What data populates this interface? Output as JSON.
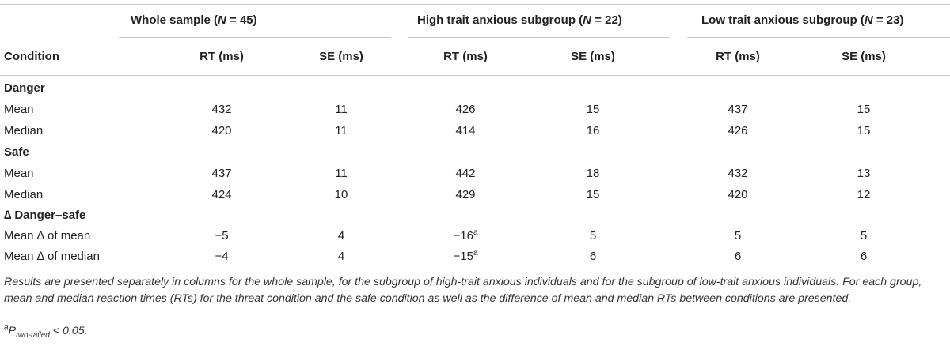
{
  "groups": [
    {
      "label_prefix": "Whole sample (",
      "label_var": "N",
      "label_suffix": " = 45)"
    },
    {
      "label_prefix": "High trait anxious subgroup (",
      "label_var": "N",
      "label_suffix": " = 22)"
    },
    {
      "label_prefix": "Low trait anxious subgroup (",
      "label_var": "N",
      "label_suffix": " = 23)"
    }
  ],
  "columns": {
    "condition": "Condition",
    "rt": "RT (ms)",
    "se": "SE (ms)"
  },
  "sections": [
    {
      "title": "Danger",
      "rows": [
        {
          "label": "Mean",
          "values": [
            "432",
            "11",
            "426",
            "15",
            "437",
            "15"
          ]
        },
        {
          "label": "Median",
          "values": [
            "420",
            "11",
            "414",
            "16",
            "426",
            "15"
          ]
        }
      ]
    },
    {
      "title": "Safe",
      "rows": [
        {
          "label": "Mean",
          "values": [
            "437",
            "11",
            "442",
            "18",
            "432",
            "13"
          ]
        },
        {
          "label": "Median",
          "values": [
            "424",
            "10",
            "429",
            "15",
            "420",
            "12"
          ]
        }
      ]
    },
    {
      "title": "∆ Danger–safe",
      "rows": [
        {
          "label": "Mean ∆ of mean",
          "values": [
            "−5",
            "4",
            "−16",
            "5",
            "5",
            "5"
          ],
          "sup": "a"
        },
        {
          "label": "Mean ∆ of median",
          "values": [
            "−4",
            "4",
            "−15",
            "6",
            "6",
            "6"
          ],
          "sup": "a"
        }
      ]
    }
  ],
  "note": "Results are presented separately in columns for the whole sample, for the subgroup of high-trait anxious individuals and for the subgroup of low-trait anxious individuals. For each group, mean and median reaction times (RTs) for the threat condition and the safe condition as well as the difference of mean and median RTs between conditions are presented.",
  "footnote": {
    "mark": "a",
    "p": "P",
    "sub": "two-tailed",
    "rest": " < 0.05."
  }
}
